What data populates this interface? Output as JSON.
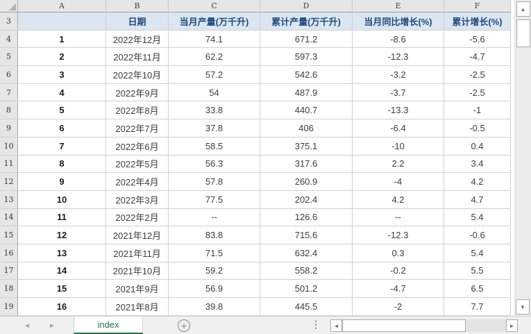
{
  "colors": {
    "accent_green": "#217346",
    "header_fill": "#dce6f1",
    "header_text": "#1f497d"
  },
  "icons": {
    "select_all_corner": "select-all-triangle",
    "scroll_up": "▲",
    "scroll_down": "▼",
    "scroll_left": "◄",
    "scroll_right": "►",
    "tab_nav_left": "◄",
    "tab_nav_right": "►",
    "add_sheet": "+",
    "splitter_dot": "•"
  },
  "sheet": {
    "col_letters": [
      "A",
      "B",
      "C",
      "D",
      "E",
      "F"
    ],
    "header_row_number": "3",
    "header": {
      "a": "",
      "date": "日期",
      "monthly": "当月产量(万千升)",
      "cumulative": "累计产量(万千升)",
      "yoy": "当月同比增长(%)",
      "cum_growth": "累计增长(%)"
    },
    "rows": [
      {
        "row": "4",
        "idx": "1",
        "date": "2022年12月",
        "monthly": "74.1",
        "cumulative": "671.2",
        "yoy": "-8.6",
        "cum_growth": "-5.6"
      },
      {
        "row": "5",
        "idx": "2",
        "date": "2022年11月",
        "monthly": "62.2",
        "cumulative": "597.3",
        "yoy": "-12.3",
        "cum_growth": "-4.7"
      },
      {
        "row": "6",
        "idx": "3",
        "date": "2022年10月",
        "monthly": "57.2",
        "cumulative": "542.6",
        "yoy": "-3.2",
        "cum_growth": "-2.5"
      },
      {
        "row": "7",
        "idx": "4",
        "date": "2022年9月",
        "monthly": "54",
        "cumulative": "487.9",
        "yoy": "-3.7",
        "cum_growth": "-2.5"
      },
      {
        "row": "8",
        "idx": "5",
        "date": "2022年8月",
        "monthly": "33.8",
        "cumulative": "440.7",
        "yoy": "-13.3",
        "cum_growth": "-1"
      },
      {
        "row": "9",
        "idx": "6",
        "date": "2022年7月",
        "monthly": "37.8",
        "cumulative": "406",
        "yoy": "-6.4",
        "cum_growth": "-0.5"
      },
      {
        "row": "10",
        "idx": "7",
        "date": "2022年6月",
        "monthly": "58.5",
        "cumulative": "375.1",
        "yoy": "-10",
        "cum_growth": "0.4"
      },
      {
        "row": "11",
        "idx": "8",
        "date": "2022年5月",
        "monthly": "56.3",
        "cumulative": "317.6",
        "yoy": "2.2",
        "cum_growth": "3.4"
      },
      {
        "row": "12",
        "idx": "9",
        "date": "2022年4月",
        "monthly": "57.8",
        "cumulative": "260.9",
        "yoy": "-4",
        "cum_growth": "4.2"
      },
      {
        "row": "13",
        "idx": "10",
        "date": "2022年3月",
        "monthly": "77.5",
        "cumulative": "202.4",
        "yoy": "4.2",
        "cum_growth": "4.7"
      },
      {
        "row": "14",
        "idx": "11",
        "date": "2022年2月",
        "monthly": "--",
        "cumulative": "126.6",
        "yoy": "--",
        "cum_growth": "5.4"
      },
      {
        "row": "15",
        "idx": "12",
        "date": "2021年12月",
        "monthly": "83.8",
        "cumulative": "715.6",
        "yoy": "-12.3",
        "cum_growth": "-0.6"
      },
      {
        "row": "16",
        "idx": "13",
        "date": "2021年11月",
        "monthly": "71.5",
        "cumulative": "632.4",
        "yoy": "0.3",
        "cum_growth": "5.4"
      },
      {
        "row": "17",
        "idx": "14",
        "date": "2021年10月",
        "monthly": "59.2",
        "cumulative": "558.2",
        "yoy": "-0.2",
        "cum_growth": "5.5"
      },
      {
        "row": "18",
        "idx": "15",
        "date": "2021年9月",
        "monthly": "56.9",
        "cumulative": "501.2",
        "yoy": "-4.7",
        "cum_growth": "6.5"
      },
      {
        "row": "19",
        "idx": "16",
        "date": "2021年8月",
        "monthly": "39.8",
        "cumulative": "445.5",
        "yoy": "-2",
        "cum_growth": "7.7"
      }
    ]
  },
  "tabbar": {
    "active_tab": "index"
  }
}
